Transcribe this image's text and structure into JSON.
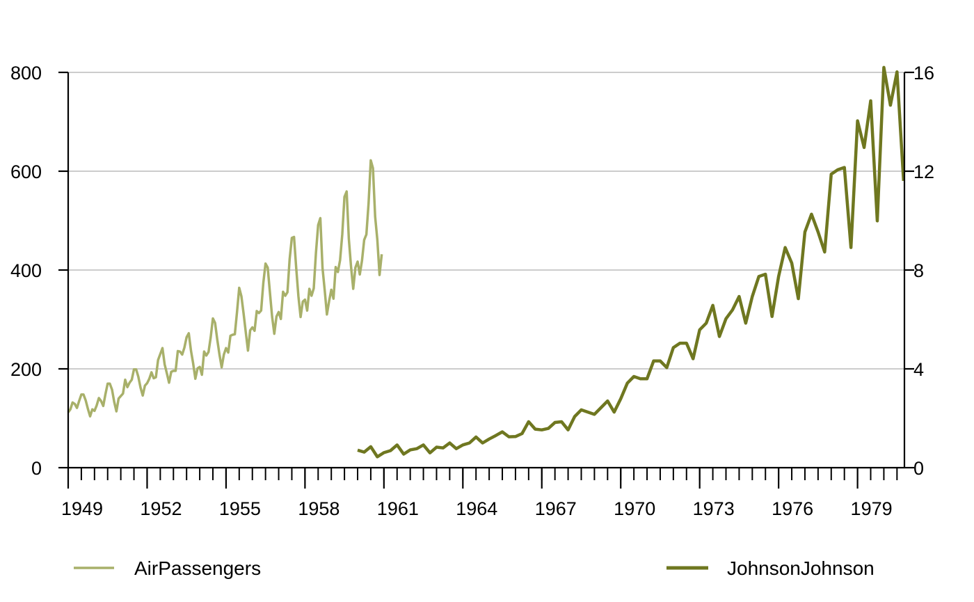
{
  "chart_data": {
    "type": "line",
    "title": "",
    "xlabel": "",
    "ylabel": "",
    "x_axis": {
      "range": [
        1949,
        1981
      ],
      "tick_labels": [
        "1949",
        "1952",
        "1955",
        "1958",
        "1961",
        "1964",
        "1967",
        "1970",
        "1973",
        "1976",
        "1979"
      ]
    },
    "y_axis_left": {
      "range": [
        0,
        800
      ],
      "ticks": [
        0,
        200,
        400,
        600,
        800
      ],
      "tick_labels": [
        "0",
        "200",
        "400",
        "600",
        "800"
      ]
    },
    "y_axis_right": {
      "range": [
        0,
        16
      ],
      "ticks": [
        0,
        4,
        8,
        12,
        16
      ],
      "tick_labels": [
        "0",
        "4",
        "8",
        "12",
        "16"
      ]
    },
    "grid": "horizontal",
    "legend_position": "bottom",
    "series": [
      {
        "name": "AirPassengers",
        "axis": "left",
        "color": "#a8b06a",
        "x_start": 1949,
        "x_step": 0.0833333,
        "values": [
          112,
          118,
          132,
          129,
          121,
          135,
          148,
          148,
          136,
          119,
          104,
          118,
          115,
          126,
          141,
          135,
          125,
          149,
          170,
          170,
          158,
          133,
          114,
          140,
          145,
          150,
          178,
          163,
          172,
          178,
          199,
          199,
          184,
          162,
          146,
          166,
          171,
          180,
          193,
          181,
          183,
          218,
          230,
          242,
          209,
          191,
          172,
          194,
          196,
          196,
          236,
          235,
          229,
          243,
          264,
          272,
          237,
          211,
          180,
          201,
          204,
          188,
          235,
          227,
          234,
          264,
          302,
          293,
          259,
          229,
          203,
          229,
          242,
          233,
          267,
          269,
          270,
          315,
          364,
          347,
          312,
          274,
          237,
          278,
          284,
          277,
          317,
          313,
          318,
          374,
          413,
          405,
          355,
          306,
          271,
          306,
          315,
          301,
          356,
          348,
          355,
          422,
          465,
          467,
          404,
          347,
          305,
          336,
          340,
          318,
          362,
          348,
          363,
          435,
          491,
          505,
          404,
          359,
          310,
          337,
          360,
          342,
          406,
          396,
          420,
          472,
          548,
          559,
          463,
          407,
          362,
          405,
          417,
          391,
          419,
          461,
          472,
          535,
          622,
          606,
          508,
          461,
          390,
          432
        ]
      },
      {
        "name": "JohnsonJohnson",
        "axis": "right",
        "color": "#6f7720",
        "x_start": 1960,
        "x_step": 0.25,
        "values": [
          0.71,
          0.63,
          0.85,
          0.44,
          0.61,
          0.69,
          0.92,
          0.55,
          0.72,
          0.77,
          0.92,
          0.6,
          0.83,
          0.8,
          1.0,
          0.77,
          0.92,
          1.0,
          1.24,
          1.0,
          1.16,
          1.3,
          1.45,
          1.25,
          1.26,
          1.38,
          1.86,
          1.56,
          1.53,
          1.59,
          1.83,
          1.86,
          1.53,
          2.07,
          2.34,
          2.25,
          2.16,
          2.43,
          2.7,
          2.25,
          2.79,
          3.42,
          3.69,
          3.6,
          3.6,
          4.32,
          4.32,
          4.05,
          4.86,
          5.04,
          5.04,
          4.41,
          5.58,
          5.85,
          6.57,
          5.31,
          6.03,
          6.39,
          6.93,
          5.85,
          6.93,
          7.74,
          7.83,
          6.12,
          7.74,
          8.91,
          8.28,
          6.84,
          9.54,
          10.26,
          9.54,
          8.73,
          11.88,
          12.06,
          12.15,
          8.91,
          14.04,
          12.96,
          14.85,
          9.99,
          16.2,
          14.67,
          16.02,
          11.61
        ]
      }
    ]
  }
}
